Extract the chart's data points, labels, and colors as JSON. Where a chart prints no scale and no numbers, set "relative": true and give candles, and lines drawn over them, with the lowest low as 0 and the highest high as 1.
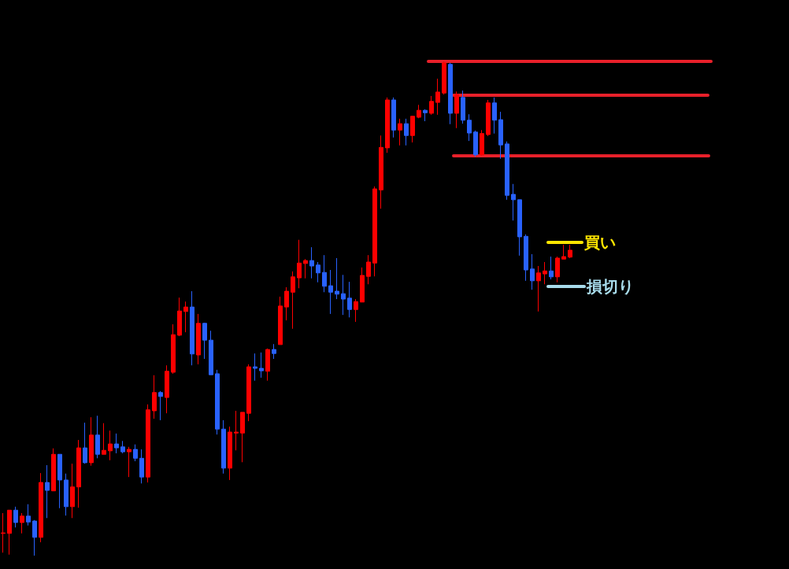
{
  "chart_data": {
    "type": "candlestick",
    "relative": true,
    "categories": [
      null,
      null,
      null,
      null,
      null,
      null,
      null,
      null,
      null,
      null,
      null,
      null,
      null,
      null,
      null,
      null,
      null,
      null,
      null,
      null,
      null,
      null,
      null,
      null,
      null,
      null,
      null,
      null,
      null,
      null,
      null,
      null,
      null,
      null,
      null,
      null,
      null,
      null,
      null,
      null,
      null,
      null,
      null,
      null,
      null,
      null,
      null,
      null,
      null,
      null,
      null,
      null,
      null,
      null,
      null,
      null,
      null,
      null,
      null,
      null,
      null,
      null,
      null,
      null,
      null,
      null,
      null,
      null,
      null,
      null,
      null,
      null,
      null,
      null,
      null,
      null,
      null,
      null,
      null,
      null,
      null,
      null,
      null,
      null,
      null,
      null,
      null,
      null,
      null,
      null,
      null
    ],
    "ohlc": [
      [
        0.045,
        0.086,
        0.006,
        0.046
      ],
      [
        0.045,
        0.092,
        0.002,
        0.092
      ],
      [
        0.092,
        0.099,
        0.057,
        0.067
      ],
      [
        0.067,
        0.086,
        0.045,
        0.08
      ],
      [
        0.08,
        0.104,
        0.061,
        0.068
      ],
      [
        0.07,
        0.072,
        0,
        0.037
      ],
      [
        0.037,
        0.167,
        0.027,
        0.148
      ],
      [
        0.148,
        0.183,
        0.076,
        0.132
      ],
      [
        0.131,
        0.217,
        0.131,
        0.205
      ],
      [
        0.205,
        0.205,
        0.096,
        0.153
      ],
      [
        0.153,
        0.166,
        0.081,
        0.099
      ],
      [
        0.099,
        0.186,
        0.076,
        0.139
      ],
      [
        0.139,
        0.234,
        0.097,
        0.218
      ],
      [
        0.218,
        0.269,
        0.186,
        0.188
      ],
      [
        0.188,
        0.28,
        0.182,
        0.244
      ],
      [
        0.244,
        0.283,
        0.197,
        0.205
      ],
      [
        0.205,
        0.268,
        0.205,
        0.213
      ],
      [
        0.212,
        0.253,
        0.193,
        0.226
      ],
      [
        0.226,
        0.247,
        0.207,
        0.218
      ],
      [
        0.22,
        0.232,
        0.207,
        0.21
      ],
      [
        0.21,
        0.22,
        0.159,
        0.215
      ],
      [
        0.215,
        0.225,
        0.191,
        0.197
      ],
      [
        0.197,
        0.215,
        0.146,
        0.159
      ],
      [
        0.159,
        0.306,
        0.148,
        0.295
      ],
      [
        0.293,
        0.365,
        0.277,
        0.33
      ],
      [
        0.33,
        0.333,
        0.274,
        0.322
      ],
      [
        0.32,
        0.385,
        0.288,
        0.373
      ],
      [
        0.371,
        0.468,
        0.368,
        0.447
      ],
      [
        0.446,
        0.522,
        0.444,
        0.495
      ],
      [
        0.494,
        0.514,
        0.452,
        0.503
      ],
      [
        0.503,
        0.535,
        0.385,
        0.408
      ],
      [
        0.406,
        0.489,
        0.387,
        0.47
      ],
      [
        0.47,
        0.471,
        0.398,
        0.436
      ],
      [
        0.436,
        0.455,
        0.366,
        0.366
      ],
      [
        0.368,
        0.376,
        0.245,
        0.256
      ],
      [
        0.256,
        0.274,
        0.166,
        0.177
      ],
      [
        0.177,
        0.261,
        0.153,
        0.25
      ],
      [
        0.248,
        0.293,
        0.213,
        0.25
      ],
      [
        0.248,
        0.29,
        0.189,
        0.29
      ],
      [
        0.288,
        0.387,
        0.272,
        0.382
      ],
      [
        0.382,
        0.409,
        0.354,
        0.379
      ],
      [
        0.379,
        0.411,
        0.36,
        0.374
      ],
      [
        0.373,
        0.419,
        0.354,
        0.417
      ],
      [
        0.417,
        0.428,
        0.398,
        0.409
      ],
      [
        0.427,
        0.524,
        0.427,
        0.505
      ],
      [
        0.503,
        0.543,
        0.476,
        0.535
      ],
      [
        0.533,
        0.575,
        0.459,
        0.564
      ],
      [
        0.562,
        0.639,
        0.541,
        0.592
      ],
      [
        0.591,
        0.6,
        0.561,
        0.597
      ],
      [
        0.597,
        0.624,
        0.561,
        0.586
      ],
      [
        0.588,
        0.594,
        0.553,
        0.572
      ],
      [
        0.573,
        0.608,
        0.533,
        0.545
      ],
      [
        0.546,
        0.578,
        0.489,
        0.533
      ],
      [
        0.535,
        0.602,
        0.519,
        0.529
      ],
      [
        0.53,
        0.568,
        0.487,
        0.519
      ],
      [
        0.521,
        0.554,
        0.482,
        0.498
      ],
      [
        0.498,
        0.519,
        0.473,
        0.514
      ],
      [
        0.513,
        0.583,
        0.513,
        0.567
      ],
      [
        0.565,
        0.608,
        0.549,
        0.594
      ],
      [
        0.592,
        0.747,
        0.565,
        0.742
      ],
      [
        0.74,
        0.85,
        0.702,
        0.826
      ],
      [
        0.825,
        0.927,
        0.815,
        0.922
      ],
      [
        0.922,
        0.927,
        0.846,
        0.861
      ],
      [
        0.861,
        0.884,
        0.83,
        0.874
      ],
      [
        0.874,
        0.884,
        0.83,
        0.85
      ],
      [
        0.85,
        0.89,
        0.836,
        0.889
      ],
      [
        0.887,
        0.912,
        0.885,
        0.901
      ],
      [
        0.901,
        0.903,
        0.879,
        0.896
      ],
      [
        0.895,
        0.93,
        0.892,
        0.919
      ],
      [
        0.917,
        0.965,
        0.892,
        0.938
      ],
      [
        0.936,
        1,
        0.933,
        0.997
      ],
      [
        0.994,
        0.997,
        0.873,
        0.895
      ],
      [
        0.895,
        0.939,
        0.865,
        0.933
      ],
      [
        0.927,
        0.941,
        0.874,
        0.881
      ],
      [
        0.881,
        0.893,
        0.839,
        0.855
      ],
      [
        0.857,
        0.86,
        0.807,
        0.811
      ],
      [
        0.811,
        0.861,
        0.809,
        0.854
      ],
      [
        0.852,
        0.922,
        0.849,
        0.916
      ],
      [
        0.916,
        0.927,
        0.854,
        0.881
      ],
      [
        0.882,
        0.898,
        0.803,
        0.831
      ],
      [
        0.833,
        0.838,
        0.72,
        0.729
      ],
      [
        0.731,
        0.752,
        0.678,
        0.72
      ],
      [
        0.72,
        0.72,
        0.607,
        0.645
      ],
      [
        0.646,
        0.65,
        0.556,
        0.578
      ],
      [
        0.58,
        0.61,
        0.538,
        0.556
      ],
      [
        0.556,
        0.586,
        0.494,
        0.572
      ],
      [
        0.57,
        0.594,
        0.549,
        0.576
      ],
      [
        0.576,
        0.605,
        0.559,
        0.564
      ],
      [
        0.564,
        0.605,
        0.553,
        0.602
      ],
      [
        0.6,
        0.629,
        0.6,
        0.605
      ],
      [
        0.604,
        0.629,
        0.602,
        0.618
      ]
    ],
    "colors": [
      "#ff0000",
      "#ff0000",
      "#2962ff",
      "#ff0000",
      "#2962ff",
      "#2962ff",
      "#ff0000",
      "#2962ff",
      "#ff0000",
      "#2962ff",
      "#2962ff",
      "#ff0000",
      "#ff0000",
      "#2962ff",
      "#ff0000",
      "#2962ff",
      "#ff0000",
      "#ff0000",
      "#2962ff",
      "#2962ff",
      "#ff0000",
      "#2962ff",
      "#2962ff",
      "#ff0000",
      "#ff0000",
      "#2962ff",
      "#ff0000",
      "#ff0000",
      "#ff0000",
      "#ff0000",
      "#2962ff",
      "#ff0000",
      "#2962ff",
      "#2962ff",
      "#2962ff",
      "#2962ff",
      "#ff0000",
      "#ff0000",
      "#ff0000",
      "#ff0000",
      "#2962ff",
      "#2962ff",
      "#ff0000",
      "#2962ff",
      "#ff0000",
      "#ff0000",
      "#ff0000",
      "#ff0000",
      "#ff0000",
      "#2962ff",
      "#2962ff",
      "#2962ff",
      "#2962ff",
      "#2962ff",
      "#2962ff",
      "#2962ff",
      "#ff0000",
      "#ff0000",
      "#ff0000",
      "#ff0000",
      "#ff0000",
      "#ff0000",
      "#2962ff",
      "#ff0000",
      "#2962ff",
      "#ff0000",
      "#ff0000",
      "#2962ff",
      "#ff0000",
      "#ff0000",
      "#ff0000",
      "#2962ff",
      "#ff0000",
      "#2962ff",
      "#2962ff",
      "#2962ff",
      "#ff0000",
      "#ff0000",
      "#2962ff",
      "#2962ff",
      "#2962ff",
      "#2962ff",
      "#2962ff",
      "#2962ff",
      "#2962ff",
      "#ff0000",
      "#ff0000",
      "#2962ff",
      "#ff0000",
      "#ff0000",
      "#ff0000"
    ],
    "ref_lines": [
      {
        "axis": "y",
        "value": 1,
        "color": "#e8202a"
      },
      {
        "axis": "y",
        "value": 0.932,
        "color": "#e8202a"
      },
      {
        "axis": "y",
        "value": 0.809,
        "color": "#e8202a"
      },
      {
        "axis": "y",
        "value": 0.634,
        "label": "買い",
        "color": "#ffe600"
      },
      {
        "axis": "y",
        "value": 0.545,
        "label": "損切り",
        "color": "#a8dcec"
      }
    ]
  }
}
